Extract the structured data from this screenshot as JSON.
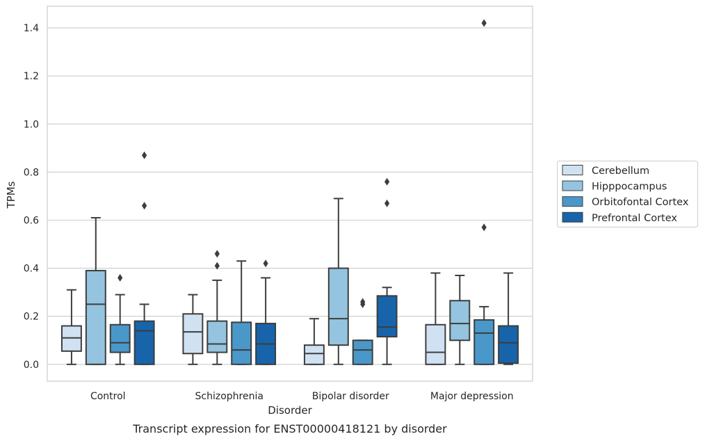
{
  "chart_data": {
    "type": "box",
    "title": "",
    "caption": "Transcript expression for ENST00000418121 by disorder",
    "xlabel": "Disorder",
    "ylabel": "TPMs",
    "ylim": [
      -0.07,
      1.49
    ],
    "yticks": [
      "0.0",
      "0.2",
      "0.4",
      "0.6",
      "0.8",
      "1.0",
      "1.2",
      "1.4"
    ],
    "grid": "horizontal",
    "legend_position": "right",
    "categories": [
      "Control",
      "Schizophrenia",
      "Bipolar disorder",
      "Major depression"
    ],
    "series": [
      {
        "name": "Cerebellum",
        "color": "#d0e1f2",
        "boxes": [
          {
            "whisker_low": 0.0,
            "q1": 0.055,
            "median": 0.11,
            "q3": 0.16,
            "whisker_high": 0.31,
            "outliers": []
          },
          {
            "whisker_low": 0.0,
            "q1": 0.045,
            "median": 0.135,
            "q3": 0.21,
            "whisker_high": 0.29,
            "outliers": []
          },
          {
            "whisker_low": 0.0,
            "q1": 0.0,
            "median": 0.045,
            "q3": 0.08,
            "whisker_high": 0.19,
            "outliers": []
          },
          {
            "whisker_low": 0.0,
            "q1": 0.0,
            "median": 0.05,
            "q3": 0.165,
            "whisker_high": 0.38,
            "outliers": []
          }
        ]
      },
      {
        "name": "Hipppocampus",
        "color": "#94c4df",
        "boxes": [
          {
            "whisker_low": 0.0,
            "q1": 0.0,
            "median": 0.25,
            "q3": 0.39,
            "whisker_high": 0.61,
            "outliers": []
          },
          {
            "whisker_low": 0.0,
            "q1": 0.05,
            "median": 0.085,
            "q3": 0.18,
            "whisker_high": 0.35,
            "outliers": [
              0.41,
              0.46
            ]
          },
          {
            "whisker_low": 0.0,
            "q1": 0.08,
            "median": 0.19,
            "q3": 0.4,
            "whisker_high": 0.69,
            "outliers": []
          },
          {
            "whisker_low": 0.0,
            "q1": 0.1,
            "median": 0.17,
            "q3": 0.265,
            "whisker_high": 0.37,
            "outliers": []
          }
        ]
      },
      {
        "name": "Orbitofontal Cortex",
        "color": "#4a98c9",
        "boxes": [
          {
            "whisker_low": 0.0,
            "q1": 0.05,
            "median": 0.09,
            "q3": 0.165,
            "whisker_high": 0.29,
            "outliers": [
              0.36
            ]
          },
          {
            "whisker_low": 0.0,
            "q1": 0.0,
            "median": 0.06,
            "q3": 0.175,
            "whisker_high": 0.43,
            "outliers": []
          },
          {
            "whisker_low": 0.0,
            "q1": 0.0,
            "median": 0.06,
            "q3": 0.1,
            "whisker_high": 0.1,
            "outliers": [
              0.25,
              0.26
            ]
          },
          {
            "whisker_low": 0.0,
            "q1": 0.0,
            "median": 0.13,
            "q3": 0.185,
            "whisker_high": 0.24,
            "outliers": [
              0.57,
              1.42
            ]
          }
        ]
      },
      {
        "name": "Prefrontal Cortex",
        "color": "#1764ab",
        "boxes": [
          {
            "whisker_low": 0.0,
            "q1": 0.0,
            "median": 0.14,
            "q3": 0.18,
            "whisker_high": 0.25,
            "outliers": [
              0.66,
              0.87
            ]
          },
          {
            "whisker_low": 0.0,
            "q1": 0.0,
            "median": 0.085,
            "q3": 0.17,
            "whisker_high": 0.36,
            "outliers": [
              0.42
            ]
          },
          {
            "whisker_low": 0.0,
            "q1": 0.115,
            "median": 0.155,
            "q3": 0.285,
            "whisker_high": 0.32,
            "outliers": [
              0.67,
              0.76
            ]
          },
          {
            "whisker_low": 0.0,
            "q1": 0.005,
            "median": 0.09,
            "q3": 0.16,
            "whisker_high": 0.38,
            "outliers": []
          }
        ]
      }
    ]
  },
  "colors": {
    "grid": "#cccccc",
    "frame": "#cccccc",
    "box_edge": "#3d3d3d"
  }
}
